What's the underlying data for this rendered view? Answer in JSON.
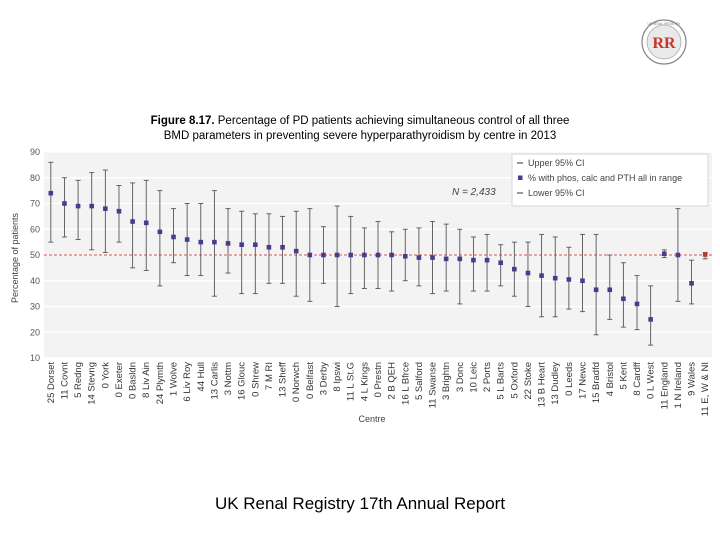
{
  "logo": {
    "text": "RR",
    "ring_text": "UK RENAL REGISTRY"
  },
  "figure": {
    "label": "Figure 8.17.",
    "caption_line1": "Percentage of PD patients achieving simultaneous control of all three",
    "caption_line2": "BMD parameters in preventing severe hyperparathyroidism by centre in 2013"
  },
  "footer": "UK Renal Registry 17th Annual Report",
  "colors": {
    "point": "#4a3c8c",
    "ci": "#555555",
    "ref_line": "#d9534f",
    "highlight": "#c0392b",
    "plot_bg": "#f3f3f3",
    "grid": "#ffffff"
  },
  "chart_data": {
    "type": "scatter",
    "title": "Percentage of PD patients achieving simultaneous control of all three BMD parameters in preventing severe hyperparathyroidism by centre in 2013",
    "xlabel": "Centre",
    "ylabel": "Percentage of patients",
    "ylim": [
      10,
      90
    ],
    "yticks": [
      10,
      20,
      30,
      40,
      50,
      60,
      70,
      80,
      90
    ],
    "annotation": "N = 2,433",
    "reference_line": 50,
    "legend": [
      "Upper 95% CI",
      "% with phos, calc and PTH all in range",
      "Lower 95% CI"
    ],
    "categories": [
      "25 Dorset",
      "11 Covnt",
      "5 Redng",
      "14 Stevng",
      "0 York",
      "0 Exeter",
      "0 Basldn",
      "8 Liv Ain",
      "24 Plymth",
      "1 Wolve",
      "6 Liv Roy",
      "44 Hull",
      "13 Carlis",
      "3 Nottm",
      "16 Glouc",
      "0 Shrew",
      "7 M RI",
      "13 Sheff",
      "0 Norwch",
      "0 Belfast",
      "3 Derby",
      "8 Ipswi",
      "11 L St.G",
      "4 L Kings",
      "0 Prestn",
      "2 B QEH",
      "16 L Bfrce",
      "5 Salford",
      "11 Swanse",
      "3 Brightn",
      "3 Donc",
      "10 Leic",
      "2 Ports",
      "5 L Barts",
      "5 Oxford",
      "22 Stoke",
      "13 B Heart",
      "13 Dudley",
      "0 Leeds",
      "17 Newc",
      "15 Bradfd",
      "4 Bristol",
      "5 Kent",
      "8 Cardff",
      "0 L West",
      "11 England",
      "1 N Ireland",
      "9 Wales",
      "11 E, W & NI"
    ],
    "values": [
      74,
      70,
      69,
      69,
      68,
      67,
      63,
      62.5,
      59,
      57,
      56,
      55,
      55,
      54.5,
      54,
      54,
      53,
      53,
      51.5,
      50,
      50,
      50,
      50,
      50,
      50,
      50,
      49.5,
      49,
      49,
      48.5,
      48.5,
      48,
      48,
      47,
      44.5,
      43,
      42,
      41,
      40.5,
      40,
      36.5,
      36.5,
      33,
      31,
      25,
      50.5,
      50,
      39,
      50.2
    ],
    "upper_ci": [
      86,
      80,
      79,
      82,
      83,
      77,
      78,
      79,
      75,
      68,
      70,
      70,
      75,
      68,
      67,
      66,
      66,
      65,
      67,
      68,
      61,
      69,
      65,
      60.5,
      63,
      59,
      60,
      60.5,
      63,
      62,
      60,
      57,
      58,
      54,
      55,
      55,
      58,
      57,
      53,
      58,
      58,
      50,
      47,
      42,
      38,
      52,
      68,
      48,
      51
    ],
    "lower_ci": [
      55,
      57,
      56,
      52,
      51,
      55,
      45,
      44,
      38,
      47,
      42,
      42,
      34,
      43,
      35,
      35,
      39,
      39,
      34,
      32,
      39,
      30,
      35,
      37,
      37,
      36,
      40,
      38,
      35,
      36,
      31,
      36,
      36,
      38,
      34,
      30,
      26,
      26,
      29,
      28,
      19,
      25,
      22,
      21,
      15,
      49,
      32,
      31,
      48.5
    ]
  }
}
